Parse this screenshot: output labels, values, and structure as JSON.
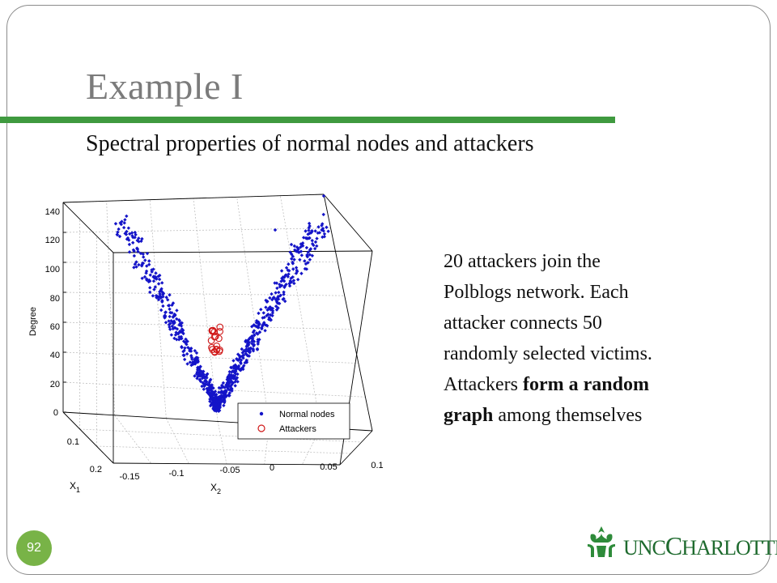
{
  "slide": {
    "title": "Example I",
    "subtitle": "Spectral properties of normal nodes and attackers",
    "page_number": "92",
    "logo_text_prefix": "UNC",
    "logo_text_big": "C",
    "logo_text_suffix": "HARLOTTE"
  },
  "description": {
    "line1": "20 attackers join the",
    "line2": "Polblogs network. Each",
    "line3": "attacker connects 50",
    "line4": "randomly selected victims.",
    "line5_prefix": "Attackers ",
    "line5_bold": "form a random",
    "line6_bold": "graph",
    "line6_suffix": " among themselves"
  },
  "chart_data": {
    "type": "scatter",
    "title": "",
    "xlabel_main": "X",
    "xlabel_sub": "1",
    "ylabel_main": "X",
    "ylabel_sub": "2",
    "zlabel": "Degree",
    "x1_ticks": [
      "0",
      "0.1",
      "0.2"
    ],
    "x2_ticks": [
      "-0.15",
      "-0.1",
      "-0.05",
      "0",
      "0.05",
      "0.1"
    ],
    "z_ticks": [
      "0",
      "20",
      "40",
      "60",
      "80",
      "100",
      "120",
      "140"
    ],
    "zlim": [
      0,
      140
    ],
    "grid": true,
    "legend_position": "bottom-right",
    "series": [
      {
        "name": "Normal nodes",
        "marker": "dot",
        "color": "#1414c8"
      },
      {
        "name": "Attackers",
        "marker": "circle",
        "color": "#d01818"
      }
    ]
  }
}
